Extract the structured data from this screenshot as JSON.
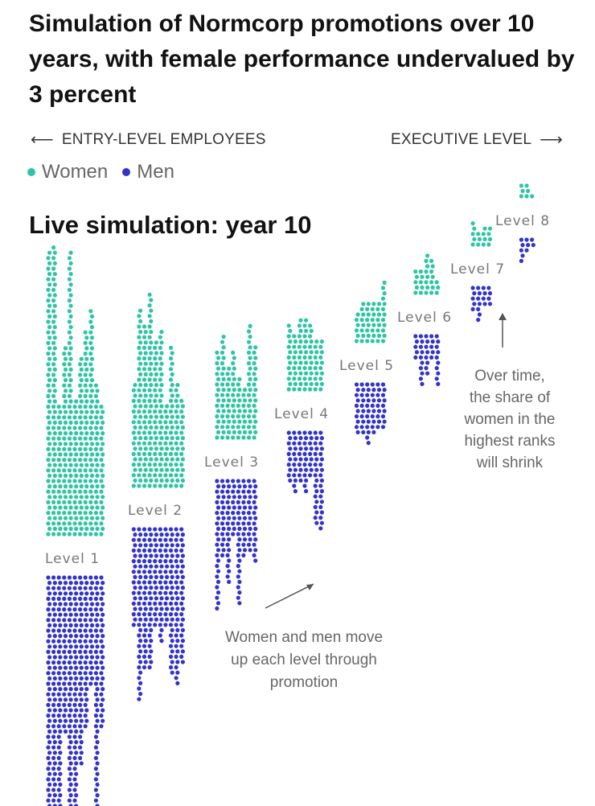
{
  "title": "Simulation of Normcorp promotions over 10 years, with female performance undervalued by 3 percent",
  "direction": {
    "left_label": "ENTRY-LEVEL EMPLOYEES",
    "right_label": "EXECUTIVE LEVEL"
  },
  "legend": [
    {
      "label": "Women",
      "color": "#2ec4a5"
    },
    {
      "label": "Men",
      "color": "#3333c8"
    }
  ],
  "subtitle": "Live simulation: year 10",
  "annotations": {
    "bottom": [
      "Women and men move",
      "up each level through",
      "promotion"
    ],
    "right": [
      "Over time,",
      "the share of",
      "women in the",
      "highest ranks",
      "will shrink"
    ]
  },
  "chart_data": {
    "type": "dot-stack",
    "title": "Live simulation: year 10",
    "categories": [
      "Level 1",
      "Level 2",
      "Level 3",
      "Level 4",
      "Level 5",
      "Level 6",
      "Level 7",
      "Level 8"
    ],
    "series": [
      {
        "name": "Women",
        "color": "#2ec4a5",
        "values": [
          420,
          260,
          130,
          85,
          50,
          28,
          16,
          7
        ]
      },
      {
        "name": "Men",
        "color": "#3333c8",
        "values": [
          430,
          250,
          140,
          90,
          60,
          38,
          20,
          10
        ]
      }
    ]
  }
}
